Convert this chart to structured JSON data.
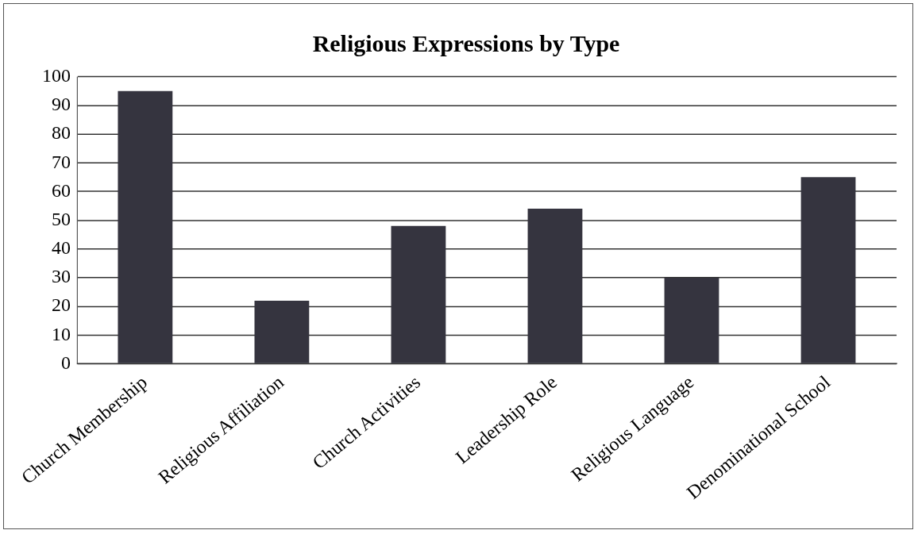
{
  "chart_data": {
    "type": "bar",
    "title": "Religious Expressions by Type",
    "categories": [
      "Church Membership",
      "Religious Affiliation",
      "Church Activities",
      "Leadership Role",
      "Religious Language",
      "Denominational School"
    ],
    "values": [
      95,
      22,
      48,
      54,
      30,
      65
    ],
    "color": "#35343f",
    "ylim": [
      0,
      100
    ],
    "yticks": [
      0,
      10,
      20,
      30,
      40,
      50,
      60,
      70,
      80,
      90,
      100
    ],
    "grid": "y",
    "legend": false
  }
}
